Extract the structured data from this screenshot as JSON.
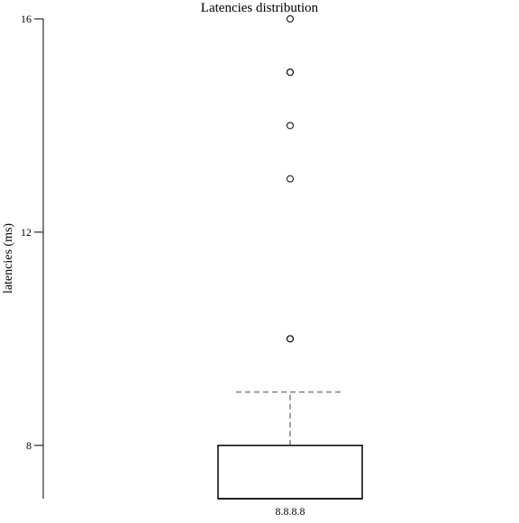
{
  "chart_data": {
    "type": "boxplot",
    "title": "Latencies distribution",
    "xlabel": "",
    "ylabel": "latencies (ms)",
    "ylim": [
      7,
      16
    ],
    "yticks": [
      8,
      12,
      16
    ],
    "grid": false,
    "categories": [
      "8.8.8.8"
    ],
    "boxes": [
      {
        "category": "8.8.8.8",
        "q1": 7,
        "median": 7,
        "q3": 8,
        "whisker_low": 7,
        "whisker_high": 9,
        "outliers": [
          10,
          10,
          13,
          14,
          15,
          15,
          16
        ]
      }
    ]
  },
  "style": {
    "axis_color": "#000000",
    "whisker_color": "#808080",
    "box_fill": "#ffffff",
    "box_stroke": "#000000",
    "outlier_stroke": "#000000"
  }
}
